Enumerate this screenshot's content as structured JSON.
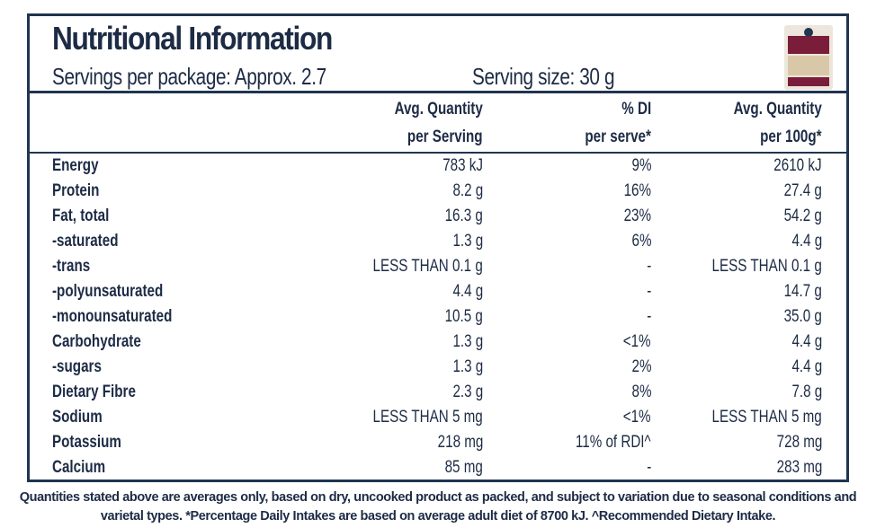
{
  "header": {
    "title": "Nutritional Information",
    "servings_per_package": "Servings per package: Approx. 2.7",
    "serving_size": "Serving size: 30 g"
  },
  "table": {
    "columns": [
      [
        "Avg. Quantity",
        "per Serving"
      ],
      [
        "% DI",
        "per serve*"
      ],
      [
        "Avg. Quantity",
        "per 100g*"
      ]
    ],
    "rows": [
      [
        "Energy",
        "783 kJ",
        "9%",
        "2610 kJ"
      ],
      [
        "Protein",
        "8.2 g",
        "16%",
        "27.4 g"
      ],
      [
        "Fat, total",
        "16.3 g",
        "23%",
        "54.2 g"
      ],
      [
        "-saturated",
        "1.3 g",
        "6%",
        "4.4 g"
      ],
      [
        "-trans",
        "LESS THAN 0.1 g",
        "-",
        "LESS THAN 0.1 g"
      ],
      [
        "-polyunsaturated",
        "4.4 g",
        "-",
        "14.7 g"
      ],
      [
        "-monounsaturated",
        "10.5 g",
        "-",
        "35.0 g"
      ],
      [
        "Carbohydrate",
        "1.3 g",
        "<1%",
        "4.4 g"
      ],
      [
        "-sugars",
        "1.3 g",
        "2%",
        "4.4 g"
      ],
      [
        "Dietary Fibre",
        "2.3 g",
        "8%",
        "7.8 g"
      ],
      [
        "Sodium",
        "LESS THAN 5 mg",
        "<1%",
        "LESS THAN 5 mg"
      ],
      [
        "Potassium",
        "218 mg",
        "11% of RDI^",
        "728 mg"
      ],
      [
        "Calcium",
        "85 mg",
        "-",
        "283 mg"
      ]
    ]
  },
  "footer": "Quantities stated above are averages only, based on dry, uncooked product as packed, and subject to variation due to seasonal conditions and varietal types. *Percentage Daily Intakes are based on average adult diet of 8700 kJ. ^Recommended Dietary Intake."
}
